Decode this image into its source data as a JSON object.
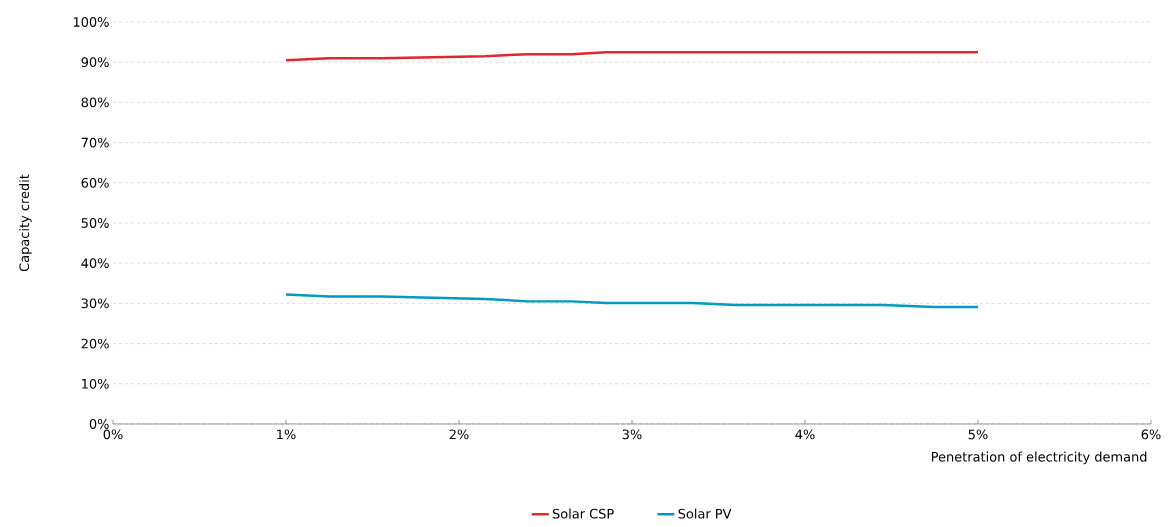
{
  "chart_data": {
    "type": "line",
    "xlabel": "Penetration of electricity demand",
    "ylabel": "Capacity credit",
    "xlim": [
      0,
      6
    ],
    "ylim": [
      0,
      100
    ],
    "xticks": [
      {
        "value": 0,
        "label": "0%"
      },
      {
        "value": 1,
        "label": "1%"
      },
      {
        "value": 2,
        "label": "2%"
      },
      {
        "value": 3,
        "label": "3%"
      },
      {
        "value": 4,
        "label": "4%"
      },
      {
        "value": 5,
        "label": "5%"
      },
      {
        "value": 6,
        "label": "6%"
      }
    ],
    "yticks": [
      {
        "value": 0,
        "label": "0%"
      },
      {
        "value": 10,
        "label": "10%"
      },
      {
        "value": 20,
        "label": "20%"
      },
      {
        "value": 30,
        "label": "30%"
      },
      {
        "value": 40,
        "label": "40%"
      },
      {
        "value": 50,
        "label": "50%"
      },
      {
        "value": 60,
        "label": "60%"
      },
      {
        "value": 70,
        "label": "70%"
      },
      {
        "value": 80,
        "label": "80%"
      },
      {
        "value": 90,
        "label": "90%"
      },
      {
        "value": 100,
        "label": "100%"
      }
    ],
    "grid": "y",
    "legend": "bottom",
    "marker": "none",
    "line_style": "solid",
    "series": [
      {
        "name": "Solar CSP",
        "color": "#e3262e",
        "x": [
          1,
          1.25,
          1.55,
          2.15,
          2.4,
          2.65,
          2.85,
          5
        ],
        "values": [
          90.5,
          91,
          91,
          91.5,
          92,
          92,
          92.5,
          92.5
        ]
      },
      {
        "name": "Solar PV",
        "color": "#009bbe",
        "x": [
          1,
          1.25,
          1.55,
          2.15,
          2.4,
          2.65,
          2.85,
          3.35,
          3.6,
          4.45,
          4.75,
          5
        ],
        "values": [
          32.2,
          31.7,
          31.7,
          31.1,
          30.5,
          30.5,
          30.1,
          30.1,
          29.6,
          29.6,
          29.1,
          29.1
        ]
      }
    ]
  }
}
